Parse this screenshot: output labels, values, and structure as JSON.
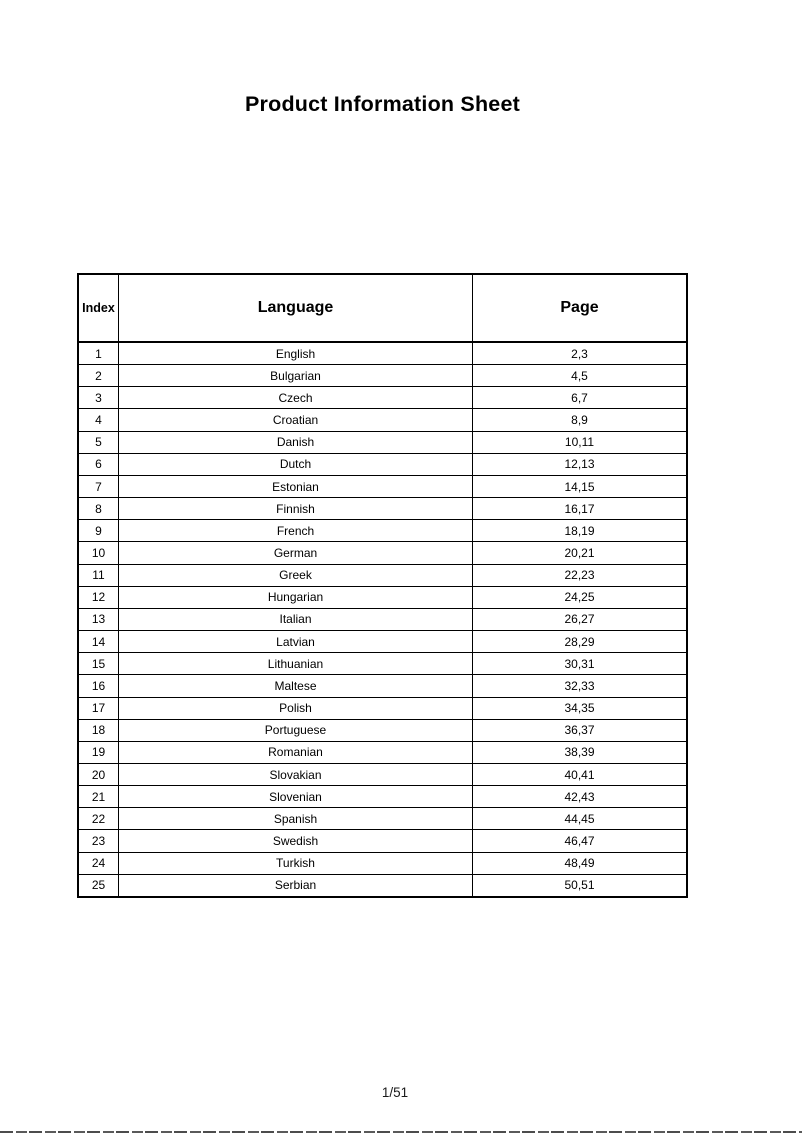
{
  "document": {
    "title": "Product Information Sheet",
    "footer_page_indicator": "1/51"
  },
  "table": {
    "headers": {
      "index": "Index",
      "language": "Language",
      "page": "Page"
    },
    "rows": [
      {
        "index": "1",
        "language": "English",
        "page": "2,3"
      },
      {
        "index": "2",
        "language": "Bulgarian",
        "page": "4,5"
      },
      {
        "index": "3",
        "language": "Czech",
        "page": "6,7"
      },
      {
        "index": "4",
        "language": "Croatian",
        "page": "8,9"
      },
      {
        "index": "5",
        "language": "Danish",
        "page": "10,11"
      },
      {
        "index": "6",
        "language": "Dutch",
        "page": "12,13"
      },
      {
        "index": "7",
        "language": "Estonian",
        "page": "14,15"
      },
      {
        "index": "8",
        "language": "Finnish",
        "page": "16,17"
      },
      {
        "index": "9",
        "language": "French",
        "page": "18,19"
      },
      {
        "index": "10",
        "language": "German",
        "page": "20,21"
      },
      {
        "index": "11",
        "language": "Greek",
        "page": "22,23"
      },
      {
        "index": "12",
        "language": "Hungarian",
        "page": "24,25"
      },
      {
        "index": "13",
        "language": "Italian",
        "page": "26,27"
      },
      {
        "index": "14",
        "language": "Latvian",
        "page": "28,29"
      },
      {
        "index": "15",
        "language": "Lithuanian",
        "page": "30,31"
      },
      {
        "index": "16",
        "language": "Maltese",
        "page": "32,33"
      },
      {
        "index": "17",
        "language": "Polish",
        "page": "34,35"
      },
      {
        "index": "18",
        "language": "Portuguese",
        "page": "36,37"
      },
      {
        "index": "19",
        "language": "Romanian",
        "page": "38,39"
      },
      {
        "index": "20",
        "language": "Slovakian",
        "page": "40,41"
      },
      {
        "index": "21",
        "language": "Slovenian",
        "page": "42,43"
      },
      {
        "index": "22",
        "language": "Spanish",
        "page": "44,45"
      },
      {
        "index": "23",
        "language": "Swedish",
        "page": "46,47"
      },
      {
        "index": "24",
        "language": "Turkish",
        "page": "48,49"
      },
      {
        "index": "25",
        "language": "Serbian",
        "page": "50,51"
      }
    ]
  }
}
